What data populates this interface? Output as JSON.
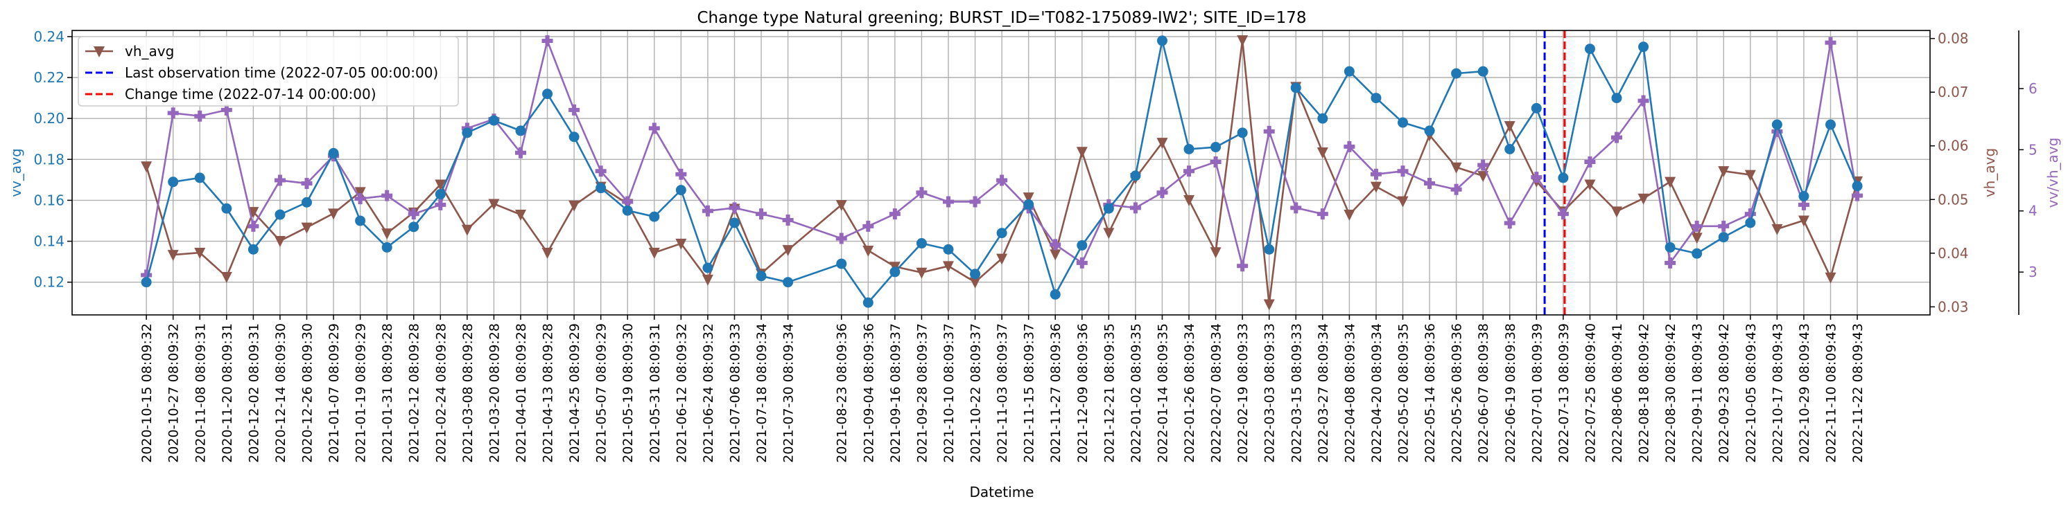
{
  "chart_data": {
    "type": "line",
    "title": "Change type Natural greening; BURST_ID='T082-175089-IW2'; SITE_ID=178",
    "xlabel": "Datetime",
    "x": [
      "2020-10-15 08:09:32",
      "2020-10-27 08:09:32",
      "2020-11-08 08:09:31",
      "2020-11-20 08:09:31",
      "2020-12-02 08:09:31",
      "2020-12-14 08:09:30",
      "2020-12-26 08:09:30",
      "2021-01-07 08:09:29",
      "2021-01-19 08:09:29",
      "2021-01-31 08:09:28",
      "2021-02-12 08:09:28",
      "2021-02-24 08:09:28",
      "2021-03-08 08:09:28",
      "2021-03-20 08:09:28",
      "2021-04-01 08:09:28",
      "2021-04-13 08:09:28",
      "2021-04-25 08:09:29",
      "2021-05-07 08:09:29",
      "2021-05-19 08:09:30",
      "2021-05-31 08:09:31",
      "2021-06-12 08:09:32",
      "2021-06-24 08:09:32",
      "2021-07-06 08:09:33",
      "2021-07-18 08:09:34",
      "2021-07-30 08:09:34",
      "2021-08-23 08:09:36",
      "2021-09-04 08:09:36",
      "2021-09-16 08:09:37",
      "2021-09-28 08:09:37",
      "2021-10-10 08:09:37",
      "2021-10-22 08:09:37",
      "2021-11-03 08:09:37",
      "2021-11-15 08:09:37",
      "2021-11-27 08:09:36",
      "2021-12-09 08:09:36",
      "2021-12-21 08:09:35",
      "2022-01-02 08:09:35",
      "2022-01-14 08:09:35",
      "2022-01-26 08:09:34",
      "2022-02-07 08:09:34",
      "2022-02-19 08:09:33",
      "2022-03-03 08:09:33",
      "2022-03-15 08:09:33",
      "2022-03-27 08:09:34",
      "2022-04-08 08:09:34",
      "2022-04-20 08:09:34",
      "2022-05-02 08:09:35",
      "2022-05-14 08:09:36",
      "2022-05-26 08:09:36",
      "2022-06-07 08:09:38",
      "2022-06-19 08:09:38",
      "2022-07-01 08:09:39",
      "2022-07-13 08:09:39",
      "2022-07-25 08:09:40",
      "2022-08-06 08:09:41",
      "2022-08-18 08:09:42",
      "2022-08-30 08:09:42",
      "2022-09-11 08:09:43",
      "2022-09-23 08:09:42",
      "2022-10-05 08:09:43",
      "2022-10-17 08:09:43",
      "2022-10-29 08:09:43",
      "2022-11-10 08:09:43",
      "2022-11-22 08:09:43"
    ],
    "xticks": [
      "2020-10-15 08:09:32",
      "2020-10-27 08:09:32",
      "2020-11-08 08:09:31",
      "2020-11-20 08:09:31",
      "2020-12-02 08:09:31",
      "2020-12-14 08:09:30",
      "2020-12-26 08:09:30",
      "2021-01-07 08:09:29",
      "2021-01-19 08:09:29",
      "2021-01-31 08:09:28",
      "2021-02-12 08:09:28",
      "2021-02-24 08:09:28",
      "2021-03-08 08:09:28",
      "2021-03-20 08:09:28",
      "2021-04-01 08:09:28",
      "2021-04-13 08:09:28",
      "2021-04-25 08:09:29",
      "2021-05-07 08:09:29",
      "2021-05-19 08:09:30",
      "2021-05-31 08:09:31",
      "2021-06-12 08:09:32",
      "2021-06-24 08:09:32",
      "2021-07-06 08:09:33",
      "2021-07-18 08:09:34",
      "2021-07-30 08:09:34",
      "2021-08-23 08:09:36",
      "2021-09-04 08:09:36",
      "2021-09-16 08:09:37",
      "2021-09-28 08:09:37",
      "2021-10-10 08:09:37",
      "2021-10-22 08:09:37",
      "2021-11-03 08:09:37",
      "2021-11-15 08:09:37",
      "2021-11-27 08:09:36",
      "2021-12-09 08:09:36",
      "2021-12-21 08:09:35",
      "2022-01-02 08:09:35",
      "2022-01-14 08:09:35",
      "2022-01-26 08:09:34",
      "2022-02-07 08:09:34",
      "2022-02-19 08:09:33",
      "2022-03-03 08:09:33",
      "2022-03-15 08:09:33",
      "2022-03-27 08:09:34",
      "2022-04-08 08:09:34",
      "2022-04-20 08:09:34",
      "2022-05-02 08:09:35",
      "2022-05-14 08:09:36",
      "2022-05-26 08:09:36",
      "2022-06-07 08:09:38",
      "2022-06-19 08:09:38",
      "2022-07-01 08:09:39",
      "2022-07-13 08:09:39",
      "2022-07-25 08:09:40",
      "2022-08-06 08:09:41",
      "2022-08-18 08:09:42",
      "2022-08-30 08:09:42",
      "2022-09-11 08:09:43",
      "2022-09-23 08:09:42",
      "2022-10-05 08:09:43",
      "2022-10-17 08:09:43",
      "2022-10-29 08:09:43",
      "2022-11-10 08:09:43",
      "2022-11-22 08:09:43"
    ],
    "xlim": [
      "2020-09-12",
      "2022-12-25"
    ],
    "grid": true,
    "legend_position": "top-left",
    "axes": {
      "left": {
        "label": "vv_avg",
        "ylim": [
          0.104,
          0.243
        ],
        "ticks": [
          0.12,
          0.14,
          0.16,
          0.18,
          0.2,
          0.22,
          0.24
        ],
        "tick_labels": [
          "0.12",
          "0.14",
          "0.16",
          "0.18",
          "0.20",
          "0.22",
          "0.24"
        ],
        "color": "#1f77b4"
      },
      "right": {
        "label": "vh_avg",
        "ylim": [
          0.0285,
          0.0815
        ],
        "ticks": [
          0.03,
          0.04,
          0.05,
          0.06,
          0.07,
          0.08
        ],
        "tick_labels": [
          "0.03",
          "0.04",
          "0.05",
          "0.06",
          "0.07",
          "0.08"
        ],
        "color": "#8c564b"
      },
      "right2": {
        "label": "vv/vh_avg",
        "ylim": [
          2.3,
          6.95
        ],
        "ticks": [
          3,
          4,
          5,
          6
        ],
        "tick_labels": [
          "3",
          "4",
          "5",
          "6"
        ],
        "color": "#9467bd"
      }
    },
    "series": [
      {
        "name": "vv_avg",
        "axis": "left",
        "color": "#1f77b4",
        "marker": "circle",
        "in_legend": false,
        "values": [
          0.12,
          0.169,
          0.171,
          0.156,
          0.136,
          0.153,
          0.159,
          0.183,
          0.15,
          0.137,
          0.147,
          0.163,
          0.193,
          0.199,
          0.194,
          0.212,
          0.191,
          0.166,
          0.155,
          0.152,
          0.165,
          0.127,
          0.149,
          0.123,
          0.12,
          0.129,
          0.11,
          0.125,
          0.139,
          0.136,
          0.124,
          0.144,
          0.158,
          0.114,
          0.138,
          0.156,
          0.172,
          0.238,
          0.185,
          0.186,
          0.193,
          0.136,
          0.215,
          0.2,
          0.223,
          0.21,
          0.198,
          0.194,
          0.222,
          0.223,
          0.185,
          0.205,
          0.171,
          0.234,
          0.21,
          0.235,
          0.137,
          0.134,
          0.142,
          0.149,
          0.197,
          0.162,
          0.197,
          0.167
        ]
      },
      {
        "name": "vh_avg",
        "axis": "right",
        "color": "#8c564b",
        "marker": "triangle-down",
        "in_legend": true,
        "values": [
          0.0562,
          0.0397,
          0.0401,
          0.0356,
          0.0477,
          0.0423,
          0.0448,
          0.0474,
          0.0514,
          0.0437,
          0.0476,
          0.0528,
          0.0444,
          0.0492,
          0.0472,
          0.0401,
          0.0489,
          0.0524,
          0.0492,
          0.0401,
          0.0418,
          0.0351,
          0.0483,
          0.0362,
          0.0406,
          0.049,
          0.0405,
          0.0375,
          0.0364,
          0.0376,
          0.0346,
          0.039,
          0.0504,
          0.0398,
          0.0589,
          0.0438,
          0.054,
          0.0606,
          0.0499,
          0.0402,
          0.0797,
          0.0305,
          0.071,
          0.0588,
          0.0472,
          0.0524,
          0.0497,
          0.062,
          0.056,
          0.0544,
          0.0637,
          0.0534,
          0.0478,
          0.0528,
          0.0478,
          0.0502,
          0.0533,
          0.0429,
          0.0553,
          0.0546,
          0.0445,
          0.0461,
          0.0355,
          0.0534
        ]
      },
      {
        "name": "vv/vh_avg",
        "axis": "right2",
        "color": "#9467bd",
        "marker": "plus",
        "in_legend": false,
        "values": [
          2.95,
          5.6,
          5.55,
          5.65,
          3.75,
          4.5,
          4.45,
          4.9,
          4.2,
          4.25,
          3.95,
          4.1,
          5.35,
          5.5,
          4.95,
          6.78,
          5.65,
          4.65,
          4.15,
          5.35,
          4.6,
          4.0,
          4.05,
          3.95,
          3.85,
          3.55,
          3.75,
          3.95,
          4.3,
          4.15,
          4.15,
          4.5,
          4.05,
          3.45,
          3.15,
          4.1,
          4.05,
          4.3,
          4.65,
          4.8,
          3.1,
          5.3,
          4.05,
          3.95,
          5.05,
          4.6,
          4.65,
          4.45,
          4.35,
          4.75,
          3.8,
          4.55,
          3.95,
          4.8,
          5.2,
          5.8,
          3.15,
          3.75,
          3.75,
          3.95,
          5.3,
          4.1,
          6.75,
          4.25
        ]
      }
    ],
    "vlines": [
      {
        "x": "2022-07-05",
        "color": "#0000ff",
        "style": "dashed",
        "label": "Last observation time (2022-07-05 00:00:00)"
      },
      {
        "x": "2022-07-14",
        "color": "#ff0000",
        "style": "dashed",
        "label": "Change time (2022-07-14 00:00:00)"
      }
    ]
  }
}
